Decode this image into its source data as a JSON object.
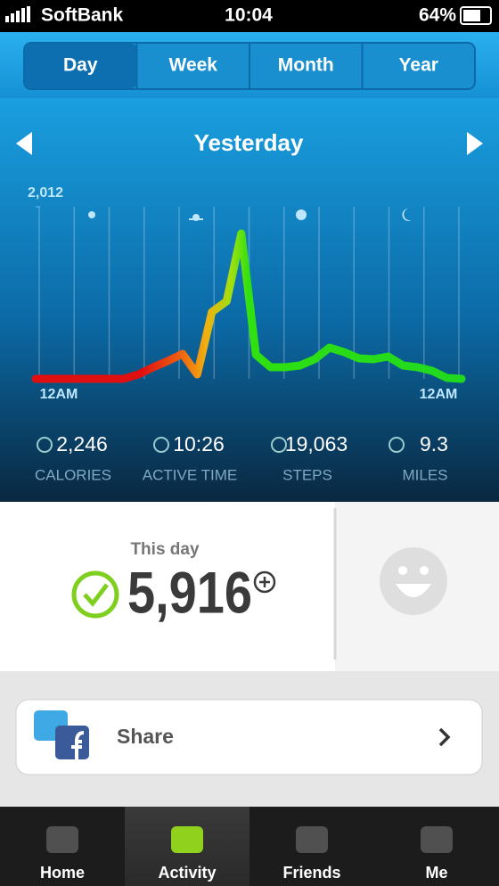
{
  "status_bar": {
    "carrier": "SoftBank",
    "time": "10:04",
    "battery": "64%"
  },
  "tabs": [
    "Day",
    "Week",
    "Month",
    "Year"
  ],
  "selected_tab": 0,
  "period": "Yesterday",
  "chart": {
    "type": "line",
    "values": [
      0,
      0,
      0,
      0,
      0,
      0,
      0,
      52,
      136,
      209,
      292,
      52,
      782,
      907,
      1699,
      281,
      136,
      136,
      156,
      229,
      365,
      313,
      240,
      229,
      261,
      156,
      136,
      94,
      10,
      0
    ],
    "ylim": [
      0,
      2012
    ],
    "yticks": [
      {
        "value": 2012,
        "label": "2,012"
      }
    ],
    "x_labels": [
      "12AM",
      "12AM"
    ]
  },
  "stats": [
    {
      "value": "2,246",
      "label": "CALORIES"
    },
    {
      "value": "10:26",
      "label": "ACTIVE TIME"
    },
    {
      "value": "19,063",
      "label": "STEPS"
    },
    {
      "value": "9.3",
      "label": "MILES"
    }
  ],
  "fuel": {
    "caption": "This day",
    "value": "5,916"
  },
  "share": "Share",
  "nav": [
    "Home",
    "Activity",
    "Friends",
    "Me"
  ],
  "selected_nav": 1
}
